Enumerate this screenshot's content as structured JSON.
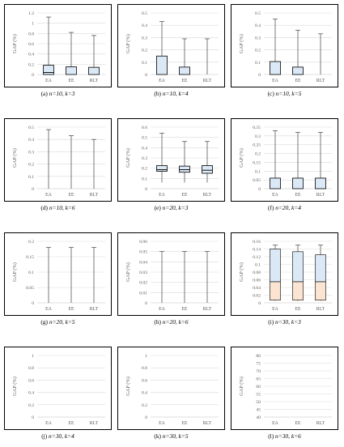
{
  "colors": {
    "box_blue": "#dbe8f6",
    "box_orange": "#fbe4d1",
    "grid": "#d9d9d9",
    "axis": "#bfbfbf",
    "whisker": "#404040"
  },
  "chart_data": [
    {
      "id": "a",
      "type": "box",
      "caption_prefix": "(a) ",
      "caption_italic": "n=10, k=3",
      "ylabel": "GAP (%)",
      "yticks": [
        "0",
        "0.2",
        "0.4",
        "0.6",
        "0.8",
        "1",
        "1.2"
      ],
      "ylim": [
        0,
        1.2
      ],
      "categories": [
        "EA",
        "EE",
        "RLT"
      ],
      "boxes": [
        {
          "min": 0,
          "q1": 0,
          "median": 0.04,
          "q3": 0.18,
          "max": 1.12,
          "fill": "blue"
        },
        {
          "min": 0,
          "q1": 0,
          "median": 0,
          "q3": 0.15,
          "max": 0.82,
          "fill": "blue"
        },
        {
          "min": 0,
          "q1": 0,
          "median": 0,
          "q3": 0.14,
          "max": 0.76,
          "fill": "blue"
        }
      ]
    },
    {
      "id": "b",
      "type": "box",
      "caption_prefix": "(b) ",
      "caption_italic": "n=10, k=4",
      "ylabel": "GAP (%)",
      "yticks": [
        "0",
        "0.1",
        "0.2",
        "0.3",
        "0.4",
        "0.5"
      ],
      "ylim": [
        0,
        0.5
      ],
      "categories": [
        "EA",
        "EE",
        "RLT"
      ],
      "boxes": [
        {
          "min": 0,
          "q1": 0,
          "median": 0,
          "q3": 0.15,
          "max": 0.43,
          "fill": "blue"
        },
        {
          "min": 0,
          "q1": 0,
          "median": 0,
          "q3": 0.06,
          "max": 0.29,
          "fill": "blue"
        },
        {
          "min": 0,
          "q1": 0,
          "median": 0,
          "q3": 0,
          "max": 0.29,
          "fill": "blue"
        }
      ]
    },
    {
      "id": "c",
      "type": "box",
      "caption_prefix": "(c) ",
      "caption_italic": "n=10, k=5",
      "ylabel": "GAP (%)",
      "yticks": [
        "0",
        "0.1",
        "0.2",
        "0.3",
        "0.4",
        "0.5"
      ],
      "ylim": [
        0,
        0.5
      ],
      "categories": [
        "EA",
        "EE",
        "RLT"
      ],
      "boxes": [
        {
          "min": 0,
          "q1": 0,
          "median": 0,
          "q3": 0.105,
          "max": 0.45,
          "fill": "blue"
        },
        {
          "min": 0,
          "q1": 0,
          "median": 0,
          "q3": 0.06,
          "max": 0.36,
          "fill": "blue"
        },
        {
          "min": 0,
          "q1": 0,
          "median": 0,
          "q3": 0,
          "max": 0.33,
          "fill": "blue"
        }
      ]
    },
    {
      "id": "d",
      "type": "box",
      "caption_prefix": "(d) ",
      "caption_italic": "n=10, k=6",
      "ylabel": "GAP (%)",
      "yticks": [
        "0",
        "0.1",
        "0.2",
        "0.3",
        "0.4",
        "0.5"
      ],
      "ylim": [
        0,
        0.5
      ],
      "categories": [
        "EA",
        "EE",
        "RLT"
      ],
      "boxes": [
        {
          "min": 0,
          "q1": 0,
          "median": 0,
          "q3": 0,
          "max": 0.48,
          "fill": "blue"
        },
        {
          "min": 0,
          "q1": 0,
          "median": 0,
          "q3": 0,
          "max": 0.43,
          "fill": "blue"
        },
        {
          "min": 0,
          "q1": 0,
          "median": 0,
          "q3": 0,
          "max": 0.4,
          "fill": "blue"
        }
      ]
    },
    {
      "id": "e",
      "type": "box",
      "caption_prefix": "(e) ",
      "caption_italic": "n=20, k=3",
      "ylabel": "GAP (%)",
      "yticks": [
        "0",
        "0.1",
        "0.2",
        "0.3",
        "0.4",
        "0.5",
        "0.6"
      ],
      "ylim": [
        0,
        0.6
      ],
      "categories": [
        "EA",
        "EE",
        "RLT"
      ],
      "boxes": [
        {
          "min": 0.06,
          "q1": 0.17,
          "median": 0.185,
          "q3": 0.225,
          "max": 0.54,
          "fill": "blue"
        },
        {
          "min": 0.06,
          "q1": 0.16,
          "median": 0.185,
          "q3": 0.22,
          "max": 0.46,
          "fill": "blue"
        },
        {
          "min": 0.06,
          "q1": 0.15,
          "median": 0.18,
          "q3": 0.225,
          "max": 0.46,
          "fill": "blue"
        }
      ]
    },
    {
      "id": "f",
      "type": "box",
      "caption_prefix": "(f) ",
      "caption_italic": "n=20, k=4",
      "ylabel": "GAP (%)",
      "yticks": [
        "0",
        "0.05",
        "0.1",
        "0.15",
        "0.2",
        "0.25",
        "0.3",
        "0.35"
      ],
      "ylim": [
        0,
        0.35
      ],
      "categories": [
        "EA",
        "EE",
        "RLT"
      ],
      "boxes": [
        {
          "min": 0,
          "q1": 0,
          "median": 0,
          "q3": 0.06,
          "max": 0.33,
          "fill": "blue"
        },
        {
          "min": 0,
          "q1": 0,
          "median": 0,
          "q3": 0.06,
          "max": 0.32,
          "fill": "blue"
        },
        {
          "min": 0,
          "q1": 0,
          "median": 0,
          "q3": 0.06,
          "max": 0.32,
          "fill": "blue"
        }
      ]
    },
    {
      "id": "g",
      "type": "box",
      "caption_prefix": "(g) ",
      "caption_italic": "n=20, k=5",
      "ylabel": "GAP (%)",
      "yticks": [
        "0",
        "0.05",
        "0.1",
        "0.15",
        "0.2"
      ],
      "ylim": [
        0,
        0.2
      ],
      "categories": [
        "EA",
        "EE",
        "RLT"
      ],
      "boxes": [
        {
          "min": 0,
          "q1": 0,
          "median": 0,
          "q3": 0,
          "max": 0.18,
          "fill": "blue"
        },
        {
          "min": 0,
          "q1": 0,
          "median": 0,
          "q3": 0,
          "max": 0.18,
          "fill": "blue"
        },
        {
          "min": 0,
          "q1": 0,
          "median": 0,
          "q3": 0,
          "max": 0.18,
          "fill": "blue"
        }
      ]
    },
    {
      "id": "h",
      "type": "box",
      "caption_prefix": "(h) ",
      "caption_italic": "n=20, k=6",
      "ylabel": "GAP (%)",
      "yticks": [
        "0",
        "0.01",
        "0.02",
        "0.03",
        "0.04",
        "0.05",
        "0.06"
      ],
      "ylim": [
        0,
        0.06
      ],
      "categories": [
        "EA",
        "EE",
        "RLT"
      ],
      "boxes": [
        {
          "min": 0,
          "q1": 0,
          "median": 0,
          "q3": 0,
          "max": 0.05,
          "fill": "blue"
        },
        {
          "min": 0,
          "q1": 0,
          "median": 0,
          "q3": 0,
          "max": 0.05,
          "fill": "blue"
        },
        {
          "min": 0,
          "q1": 0,
          "median": 0,
          "q3": 0,
          "max": 0.05,
          "fill": "blue"
        }
      ]
    },
    {
      "id": "i",
      "type": "box",
      "caption_prefix": "(i) ",
      "caption_italic": "n=30, k=3",
      "ylabel": "GAP (%)",
      "yticks": [
        "0",
        "0.02",
        "0.04",
        "0.06",
        "0.08",
        "0.1",
        "0.12",
        "0.14",
        "0.16"
      ],
      "ylim": [
        0,
        0.16
      ],
      "categories": [
        "EA",
        "EE",
        "RLT"
      ],
      "boxes": [
        {
          "min": 0.005,
          "q1": 0.007,
          "median": 0.055,
          "q3": 0.14,
          "max": 0.15,
          "fill": "split"
        },
        {
          "min": 0.005,
          "q1": 0.007,
          "median": 0.055,
          "q3": 0.133,
          "max": 0.15,
          "fill": "split"
        },
        {
          "min": 0.005,
          "q1": 0.007,
          "median": 0.055,
          "q3": 0.125,
          "max": 0.15,
          "fill": "split"
        }
      ]
    },
    {
      "id": "j",
      "type": "box",
      "caption_prefix": "(j) ",
      "caption_italic": "n=30, k=4",
      "ylabel": "GAP (%)",
      "yticks": [
        "0",
        "0.2",
        "0.4",
        "0.6",
        "0.8",
        "1"
      ],
      "ylim": [
        0,
        1
      ],
      "categories": [
        "EA",
        "EE",
        "RLT"
      ],
      "boxes": []
    },
    {
      "id": "k",
      "type": "box",
      "caption_prefix": "(k) ",
      "caption_italic": "n=30, k=5",
      "ylabel": "GAP (%)",
      "yticks": [
        "0",
        "0.2",
        "0.4",
        "0.6",
        "0.8",
        "1"
      ],
      "ylim": [
        0,
        1
      ],
      "categories": [
        "EA",
        "EE",
        "RLT"
      ],
      "boxes": []
    },
    {
      "id": "l",
      "type": "box",
      "caption_prefix": "(l) ",
      "caption_italic": "n=30, k=6",
      "ylabel": "GAP (%)",
      "yticks": [
        "40",
        "45",
        "50",
        "55",
        "60",
        "65",
        "70",
        "75",
        "80"
      ],
      "ylim": [
        40,
        80
      ],
      "categories": [
        "EA",
        "EE",
        "RLT"
      ],
      "boxes": []
    }
  ]
}
